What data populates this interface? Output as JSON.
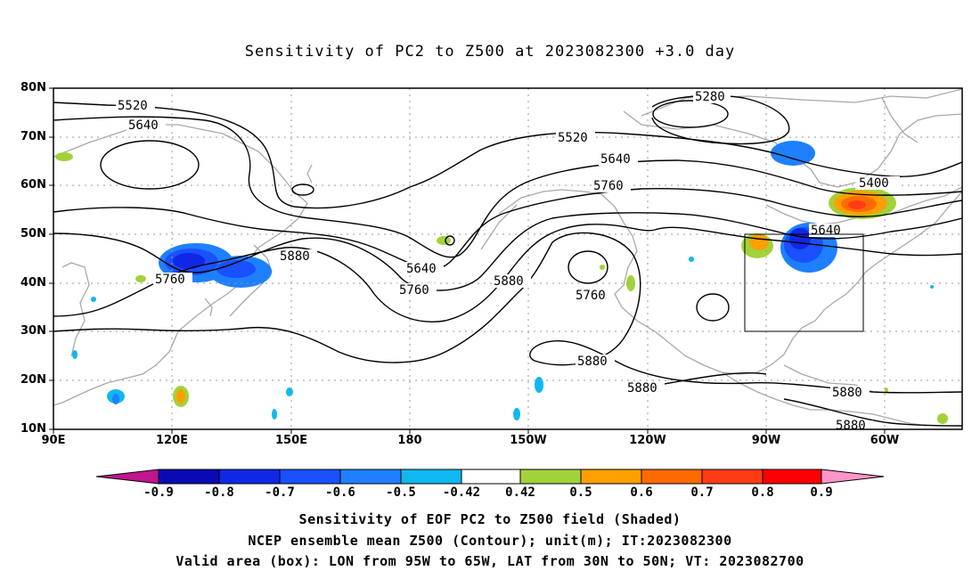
{
  "title": "Sensitivity of PC2 to Z500 at 2023082300 +3.0 day",
  "axes": {
    "lat_labels": [
      "80N",
      "70N",
      "60N",
      "50N",
      "40N",
      "30N",
      "20N",
      "10N"
    ],
    "lon_labels": [
      "90E",
      "120E",
      "150E",
      "180",
      "150W",
      "120W",
      "90W",
      "60W"
    ]
  },
  "contours": {
    "unit": "m",
    "labels": [
      "5280",
      "5400",
      "5520",
      "5520",
      "5640",
      "5640",
      "5640",
      "5640",
      "5760",
      "5760",
      "5760",
      "5760",
      "5880",
      "5880",
      "5880",
      "5880",
      "5880",
      "5880"
    ]
  },
  "colorbar": {
    "labels": [
      "-0.9",
      "-0.8",
      "-0.7",
      "-0.6",
      "-0.5",
      "-0.42",
      "0.42",
      "0.5",
      "0.6",
      "0.7",
      "0.8",
      "0.9"
    ],
    "colors": [
      "#c0168f",
      "#0a0ab4",
      "#0e28e6",
      "#1a50ff",
      "#1e80ff",
      "#0fb8f0",
      "#ffffff",
      "#a2d23a",
      "#ffa000",
      "#ff6a00",
      "#ff3c14",
      "#ff0000",
      "#ff96c8"
    ]
  },
  "valid_box": {
    "lon_from": "95W",
    "lon_to": "65W",
    "lat_from": "30N",
    "lat_to": "50N"
  },
  "caption": {
    "line1": "Sensitivity of EOF PC2 to Z500 field (Shaded)",
    "line2": "NCEP ensemble mean Z500 (Contour); unit(m); IT:2023082300",
    "line3": "Valid area (box): LON from 95W to 65W, LAT from 30N to 50N; VT: 2023082700"
  }
}
